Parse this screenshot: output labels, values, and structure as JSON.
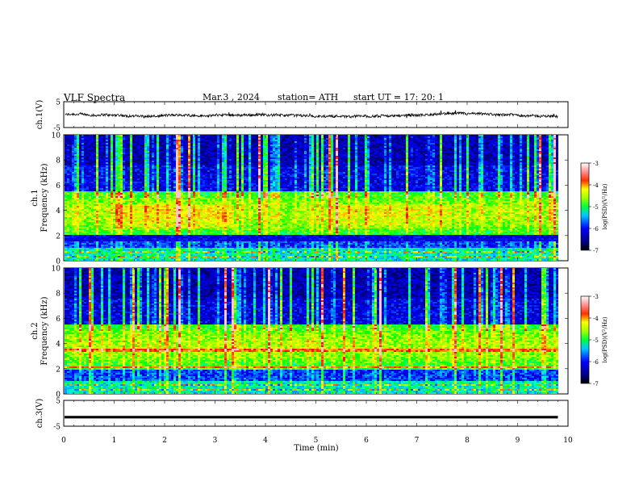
{
  "header": {
    "title": "VLF  Spectra",
    "date": "Mar.3  , 2024",
    "station": "station= ATH",
    "start": "start  UT  =   17: 20: 1"
  },
  "chart_data": [
    {
      "type": "line",
      "id": "ch1-waveform",
      "ylabel": "ch.1(V)",
      "ylim": [
        -5,
        5
      ],
      "yticks": [
        "5",
        "-5"
      ],
      "x_range_min": [
        0,
        9.8
      ],
      "note_values": "dense noisy waveform around -0.3 V with amplitude about 1 V"
    },
    {
      "type": "heatmap",
      "id": "ch1-spectrogram",
      "ylabel": "ch.1 Frequency (kHz)",
      "ylabel_lines": [
        "ch.1",
        "Frequency (kHz)"
      ],
      "ylim": [
        0,
        10
      ],
      "yticks": [
        "0",
        "2",
        "4",
        "6",
        "8",
        "10"
      ],
      "colorbar": {
        "label": "log(PSD)(V²/Hz)",
        "ticks": [
          "-3",
          "-4",
          "-5",
          "-6",
          "-7"
        ],
        "range": [
          -7,
          -3
        ]
      }
    },
    {
      "type": "heatmap",
      "id": "ch2-spectrogram",
      "ylabel": "ch.2 Frequency (kHz)",
      "ylabel_lines": [
        "ch.2",
        "Frequency (kHz)"
      ],
      "ylim": [
        0,
        10
      ],
      "yticks": [
        "0",
        "2",
        "4",
        "6",
        "8",
        "10"
      ],
      "colorbar": {
        "label": "log(PSD)(V²/Hz)",
        "ticks": [
          "-3",
          "-4",
          "-5",
          "-6",
          "-7"
        ],
        "range": [
          -7,
          -3
        ]
      }
    },
    {
      "type": "line",
      "id": "ch3-waveform",
      "ylabel": "ch.3(V)",
      "ylim": [
        -5,
        5
      ],
      "yticks": [
        "5",
        "-5"
      ],
      "x_range_min": [
        0,
        9.8
      ],
      "constant_value": -1.5
    }
  ],
  "xaxis": {
    "label": "Time  (min)",
    "ticks": [
      "0",
      "1",
      "2",
      "3",
      "4",
      "5",
      "6",
      "7",
      "8",
      "9",
      "10"
    ],
    "range": [
      0,
      10
    ]
  },
  "colors": {
    "waveform": "#000000",
    "colormap": [
      "#000080",
      "#0000ff",
      "#00ffff",
      "#00ff00",
      "#ffff00",
      "#ff0000",
      "#ffffff"
    ]
  }
}
